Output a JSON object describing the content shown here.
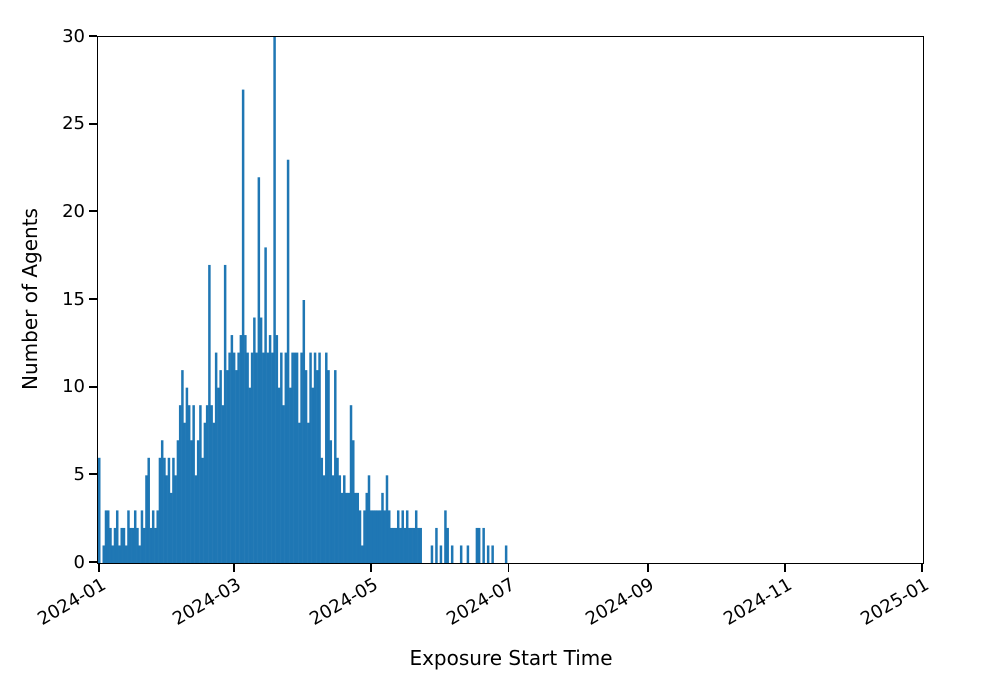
{
  "figure": {
    "background": "#ffffff",
    "axis_color": "#000000"
  },
  "chart_data": {
    "type": "bar",
    "title": "",
    "xlabel": "Exposure Start Time",
    "ylabel": "Number of Agents",
    "bar_color": "#1f77b4",
    "grid": false,
    "legend": "none",
    "bin_unit": "day",
    "start_date": "2023-12-31",
    "x_axis_start": "2023-12-31",
    "x_axis_end": "2025-01-01",
    "ylim": [
      0,
      30
    ],
    "yticks": [
      0,
      5,
      10,
      15,
      20,
      25,
      30
    ],
    "xtick_labels": [
      "2024-01",
      "2024-03",
      "2024-05",
      "2024-07",
      "2024-09",
      "2024-11",
      "2025-01"
    ],
    "values": [
      6,
      0,
      1,
      3,
      3,
      2,
      1,
      2,
      3,
      1,
      2,
      2,
      1,
      3,
      2,
      2,
      3,
      2,
      1,
      3,
      2,
      5,
      6,
      2,
      3,
      2,
      3,
      6,
      7,
      6,
      5,
      6,
      4,
      6,
      5,
      7,
      9,
      11,
      8,
      10,
      9,
      7,
      9,
      5,
      7,
      9,
      6,
      8,
      9,
      17,
      9,
      8,
      12,
      10,
      11,
      9,
      17,
      11,
      12,
      13,
      12,
      11,
      12,
      13,
      27,
      13,
      12,
      10,
      12,
      14,
      12,
      22,
      14,
      12,
      18,
      12,
      13,
      12,
      30,
      13,
      10,
      12,
      9,
      12,
      23,
      10,
      12,
      12,
      12,
      8,
      12,
      15,
      11,
      8,
      12,
      10,
      12,
      11,
      12,
      6,
      5,
      12,
      11,
      7,
      5,
      11,
      6,
      5,
      4,
      5,
      4,
      4,
      9,
      7,
      4,
      4,
      3,
      1,
      3,
      4,
      5,
      3,
      3,
      3,
      3,
      3,
      4,
      3,
      5,
      3,
      2,
      2,
      2,
      3,
      2,
      3,
      2,
      3,
      2,
      2,
      2,
      3,
      2,
      2,
      0,
      0,
      0,
      0,
      1,
      0,
      2,
      0,
      1,
      0,
      3,
      2,
      0,
      1,
      0,
      0,
      0,
      1,
      0,
      0,
      1,
      0,
      0,
      0,
      2,
      2,
      0,
      2,
      0,
      1,
      0,
      1,
      0,
      0,
      0,
      0,
      0,
      1,
      0
    ]
  }
}
